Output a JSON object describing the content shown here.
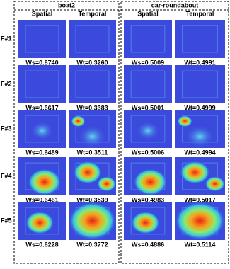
{
  "row_labels": [
    "F#1",
    "F#2",
    "F#3",
    "F#4",
    "F#5"
  ],
  "panels": [
    {
      "title": "boat2",
      "columns": [
        "Spatial",
        "Temporal"
      ],
      "rows": [
        [
          "Ws=0.6740",
          "Wt=0.3260"
        ],
        [
          "Ws=0.6617",
          "Wt=0.3383"
        ],
        [
          "Ws=0.6489",
          "Wt=0.3511"
        ],
        [
          "Ws=0.6461",
          "Wt=0.3539"
        ],
        [
          "Ws=0.6228",
          "Wt=0.3772"
        ]
      ]
    },
    {
      "title": "car-roundabout",
      "columns": [
        "Spatial",
        "Temporal"
      ],
      "rows": [
        [
          "Ws=0.5009",
          "Wt=0.4991"
        ],
        [
          "Ws=0.5001",
          "Wt=0.4999"
        ],
        [
          "Ws=0.5006",
          "Wt=0.4994"
        ],
        [
          "Ws=0.4983",
          "Wt=0.5017"
        ],
        [
          "Ws=0.4886",
          "Wt=0.5114"
        ]
      ]
    }
  ]
}
